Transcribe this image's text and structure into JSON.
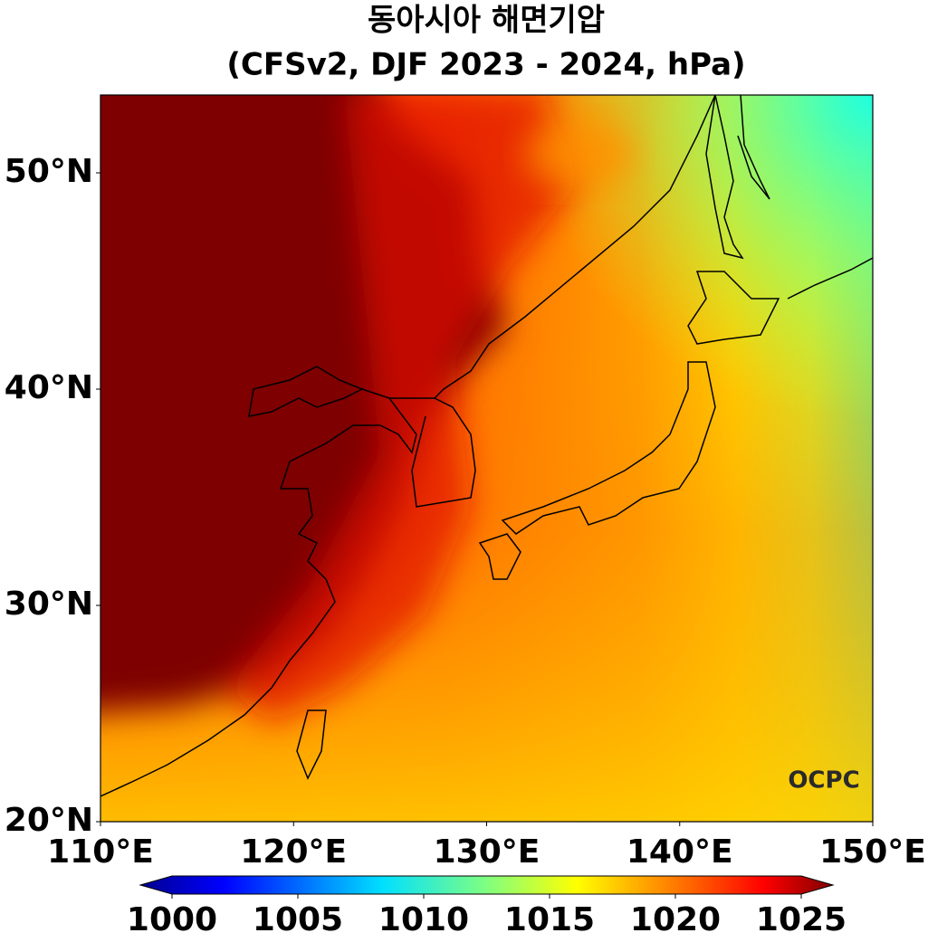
{
  "title": "동아시아 해면기압",
  "subtitle": "(CFSv2, DJF 2023 - 2024, hPa)",
  "map": {
    "lat_ticks": [
      {
        "value": 50,
        "label": "50°N"
      },
      {
        "value": 40,
        "label": "40°N"
      },
      {
        "value": 30,
        "label": "30°N"
      },
      {
        "value": 20,
        "label": "20°N"
      }
    ],
    "lon_ticks": [
      {
        "value": 110,
        "label": "110°E"
      },
      {
        "value": 120,
        "label": "120°E"
      },
      {
        "value": 130,
        "label": "130°E"
      },
      {
        "value": 140,
        "label": "140°E"
      },
      {
        "value": 150,
        "label": "150°E"
      }
    ],
    "logo": "OCPC"
  },
  "colorbar": {
    "ticks": [
      1000,
      1005,
      1010,
      1015,
      1020,
      1025
    ]
  }
}
